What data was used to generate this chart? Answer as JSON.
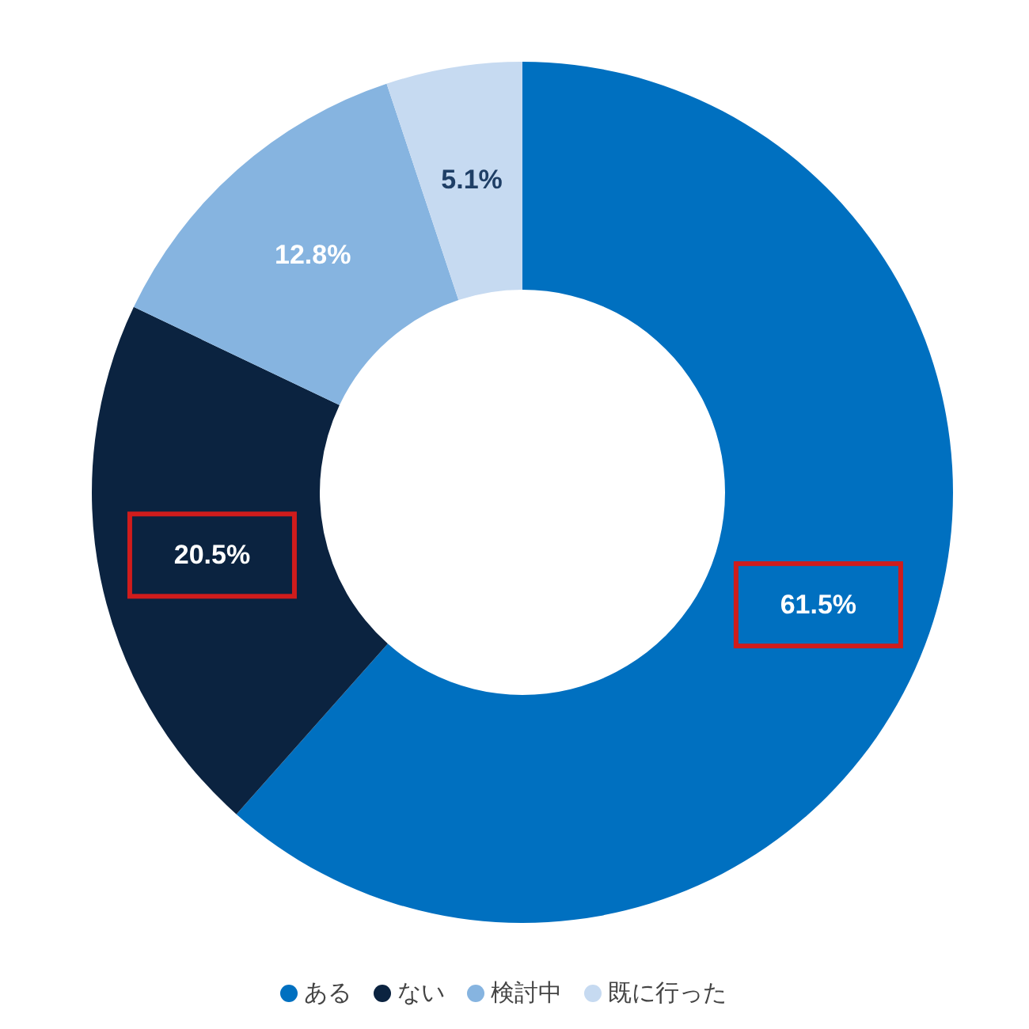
{
  "chart_data": {
    "type": "donut",
    "categories": [
      "ある",
      "ない",
      "検討中",
      "既に行った"
    ],
    "values": [
      61.5,
      20.5,
      12.8,
      5.1
    ],
    "colors": [
      "#0070c0",
      "#0b2340",
      "#86b4e0",
      "#c6daf1"
    ],
    "value_labels": [
      "61.5%",
      "20.5%",
      "12.8%",
      "5.1%"
    ],
    "legend": "bottom"
  }
}
